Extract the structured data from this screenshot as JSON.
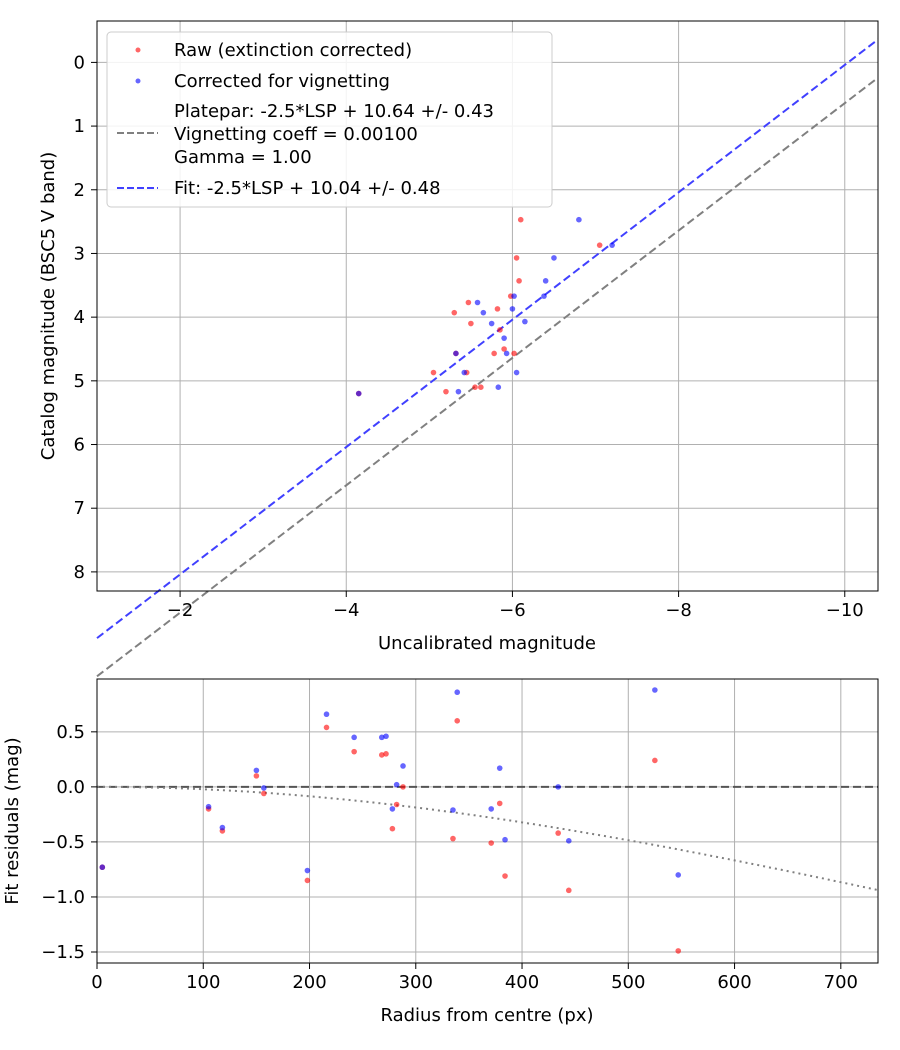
{
  "chart_data": [
    {
      "type": "scatter",
      "xlabel": "Uncalibrated magnitude",
      "ylabel": "Catalog magnitude (BSC5 V band)",
      "xlim": [
        -1.0,
        -10.4
      ],
      "ylim": [
        8.3,
        -0.65
      ],
      "xticks": [
        -2,
        -4,
        -6,
        -8,
        -10
      ],
      "xtick_labels": [
        "−2",
        "−4",
        "−6",
        "−8",
        "−10"
      ],
      "yticks": [
        0,
        1,
        2,
        3,
        4,
        5,
        6,
        7,
        8
      ],
      "ytick_labels": [
        "0",
        "1",
        "2",
        "3",
        "4",
        "5",
        "6",
        "7",
        "8"
      ],
      "grid": true,
      "legend_position": "top-left",
      "series": [
        {
          "name": "Raw (extinction corrected)",
          "color": "#ff0000",
          "x": [
            -4.15,
            -5.05,
            -5.2,
            -5.3,
            -5.32,
            -5.45,
            -5.47,
            -5.5,
            -5.55,
            -5.62,
            -5.78,
            -5.82,
            -5.85,
            -5.9,
            -5.98,
            -6.02,
            -6.05,
            -6.08,
            -6.1,
            -7.05
          ],
          "y": [
            5.2,
            4.87,
            5.17,
            3.93,
            4.57,
            4.87,
            3.77,
            4.1,
            5.1,
            5.1,
            4.57,
            3.87,
            4.2,
            4.5,
            3.67,
            4.57,
            3.07,
            3.43,
            2.47,
            2.87
          ]
        },
        {
          "name": "Corrected for vignetting",
          "color": "#0000ff",
          "x": [
            -4.15,
            -5.32,
            -5.35,
            -5.42,
            -5.58,
            -5.65,
            -5.75,
            -5.83,
            -5.9,
            -5.93,
            -6.0,
            -6.02,
            -6.05,
            -6.15,
            -6.38,
            -6.4,
            -6.5,
            -6.8,
            -7.2
          ],
          "y": [
            5.2,
            4.57,
            5.17,
            4.87,
            3.77,
            3.93,
            4.1,
            5.1,
            4.33,
            4.57,
            3.87,
            3.67,
            4.87,
            4.07,
            3.67,
            3.43,
            3.07,
            2.47,
            2.87
          ]
        }
      ],
      "lines": [
        {
          "name": "Platepar: -2.5*LSP + 10.64 +/- 0.43\nVignetting coeff = 0.00100\nGamma = 1.00",
          "color": "#808080",
          "style": "dashed",
          "offset": 10.64
        },
        {
          "name": "Fit: -2.5*LSP + 10.04 +/- 0.48",
          "color": "#4040ff",
          "style": "dashed",
          "offset": 10.04
        }
      ],
      "legend": [
        "Raw (extinction corrected)",
        "Corrected for vignetting",
        "Platepar: -2.5*LSP + 10.64 +/- 0.43",
        "Vignetting coeff = 0.00100",
        "Gamma = 1.00",
        "Fit: -2.5*LSP + 10.04 +/- 0.48"
      ]
    },
    {
      "type": "scatter",
      "xlabel": "Radius from centre (px)",
      "ylabel": "Fit residuals (mag)",
      "xlim": [
        0,
        735
      ],
      "ylim": [
        -1.6,
        0.98
      ],
      "xticks": [
        0,
        100,
        200,
        300,
        400,
        500,
        600,
        700
      ],
      "xtick_labels": [
        "0",
        "100",
        "200",
        "300",
        "400",
        "500",
        "600",
        "700"
      ],
      "yticks": [
        0.5,
        0.0,
        -0.5,
        -1.0,
        -1.5
      ],
      "ytick_labels": [
        "0.5",
        "0.0",
        "−0.5",
        "−1.0",
        "−1.5"
      ],
      "grid": true,
      "series": [
        {
          "name": "Raw (extinction corrected)",
          "color": "#ff0000",
          "x": [
            5,
            105,
            118,
            150,
            157,
            198,
            216,
            242,
            268,
            272,
            278,
            282,
            288,
            335,
            339,
            371,
            379,
            384,
            434,
            444,
            525,
            547
          ],
          "y": [
            -0.73,
            -0.2,
            -0.4,
            0.1,
            -0.06,
            -0.85,
            0.54,
            0.32,
            0.29,
            0.3,
            -0.38,
            -0.16,
            0.0,
            -0.47,
            0.6,
            -0.51,
            -0.15,
            -0.81,
            -0.42,
            -0.94,
            0.24,
            -1.49
          ]
        },
        {
          "name": "Corrected for vignetting",
          "color": "#0000ff",
          "x": [
            5,
            105,
            118,
            150,
            157,
            198,
            216,
            242,
            268,
            272,
            278,
            282,
            288,
            335,
            339,
            371,
            379,
            384,
            434,
            444,
            525,
            547
          ],
          "y": [
            -0.73,
            -0.18,
            -0.37,
            0.15,
            -0.01,
            -0.76,
            0.66,
            0.45,
            0.45,
            0.46,
            -0.2,
            0.02,
            0.19,
            -0.21,
            0.86,
            -0.2,
            0.17,
            -0.48,
            0.0,
            -0.49,
            0.88,
            -0.8
          ]
        }
      ],
      "reference_lines": [
        {
          "name": "zero",
          "color": "#555555",
          "style": "dashed",
          "y": 0.0
        },
        {
          "name": "vignetting model",
          "color": "#808080",
          "style": "dotted",
          "coeff": 0.001
        }
      ]
    }
  ]
}
